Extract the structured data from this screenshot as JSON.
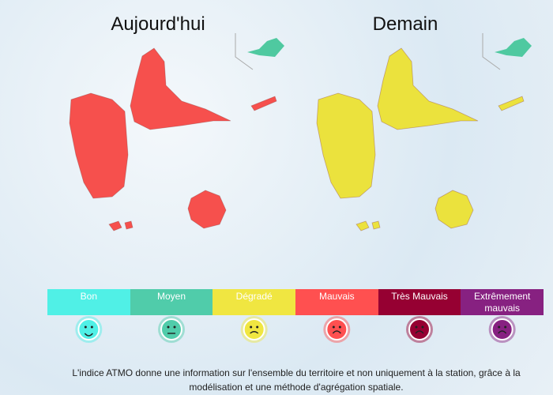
{
  "maps": [
    {
      "title": "Aujourd'hui",
      "color": "#f6504d"
    },
    {
      "title": "Demain",
      "color": "#ebe23d"
    }
  ],
  "legend": [
    {
      "label": "Bon",
      "color": "#50f0e6"
    },
    {
      "label": "Moyen",
      "color": "#50ccaa"
    },
    {
      "label": "Dégradé",
      "color": "#f0e641"
    },
    {
      "label": "Mauvais",
      "color": "#ff5050"
    },
    {
      "label": "Très Mauvais",
      "color": "#960032"
    },
    {
      "label": "Extrêmement mauvais",
      "color": "#872181"
    }
  ],
  "footer": "L'indice ATMO donne une information sur l'ensemble du territoire et non uniquement à la station, grâce à la modélisation et une méthode d'agrégation spatiale."
}
